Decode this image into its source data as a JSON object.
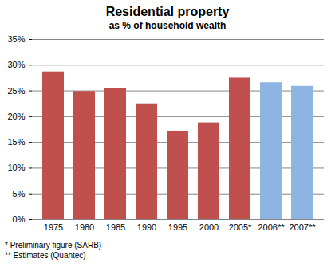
{
  "chart_data": {
    "type": "bar",
    "title": "Residential property",
    "subtitle": "as % of household wealth",
    "categories": [
      "1975",
      "1980",
      "1985",
      "1990",
      "1995",
      "2000",
      "2005*",
      "2006**",
      "2007**"
    ],
    "values": [
      28.7,
      24.9,
      25.4,
      22.5,
      17.2,
      18.8,
      27.5,
      26.6,
      25.9
    ],
    "colors": [
      "#c0504d",
      "#c0504d",
      "#c0504d",
      "#c0504d",
      "#c0504d",
      "#c0504d",
      "#c0504d",
      "#8eb4e3",
      "#8eb4e3"
    ],
    "ylim": [
      0,
      35
    ],
    "yticks": [
      {
        "value": 0,
        "label": "0%"
      },
      {
        "value": 5,
        "label": "5%"
      },
      {
        "value": 10,
        "label": "10%"
      },
      {
        "value": 15,
        "label": "15%"
      },
      {
        "value": 20,
        "label": "20%"
      },
      {
        "value": 25,
        "label": "25%"
      },
      {
        "value": 30,
        "label": "30%"
      },
      {
        "value": 35,
        "label": "35%"
      }
    ],
    "grid": true,
    "annotations": [
      "* Preliminary figure (SARB)",
      "** Estimates (Quantec)"
    ]
  }
}
